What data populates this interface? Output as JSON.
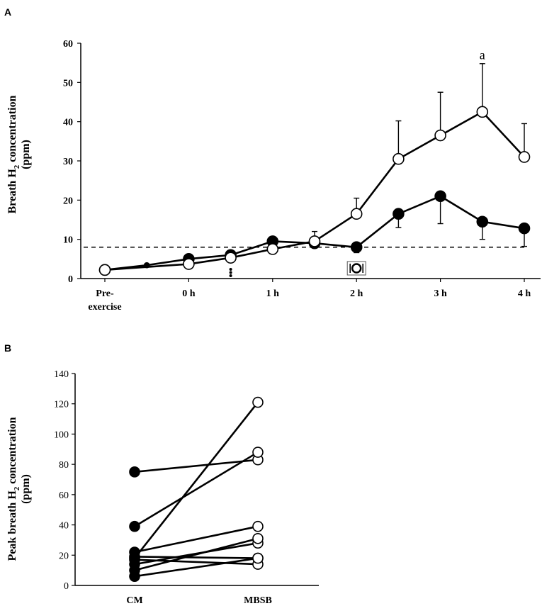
{
  "chart_data": [
    {
      "panel_label": "A",
      "type": "line",
      "ylabel_main": "Breath H",
      "ylabel_sub": "2",
      "ylabel_rest": " concentration",
      "ylabel_unit": "(ppm)",
      "ylim": [
        0,
        60
      ],
      "yticks": [
        "0",
        "10",
        "20",
        "30",
        "40",
        "50",
        "60"
      ],
      "xtick_labels": [
        {
          "label_l1": "Pre-",
          "label_l2": "exercise",
          "x": 0
        },
        {
          "label_l1": "0 h",
          "label_l2": "",
          "x": 1
        },
        {
          "label_l1": "1 h",
          "label_l2": "",
          "x": 2
        },
        {
          "label_l1": "2 h",
          "label_l2": "",
          "x": 3
        },
        {
          "label_l1": "3 h",
          "label_l2": "",
          "x": 4
        },
        {
          "label_l1": "4 h",
          "label_l2": "",
          "x": 5
        }
      ],
      "threshold": 8,
      "annotation_text": "a",
      "annotation_x": 4.5,
      "annotation_y": 57,
      "meal_marker_x": 3,
      "exercise_marker_x": 1.5,
      "series": [
        {
          "name": "CM",
          "marker": "filled",
          "x": [
            0,
            0.5,
            1,
            1.5,
            2,
            2.5,
            3,
            3.5,
            4,
            4.5,
            5
          ],
          "y": [
            2.2,
            3.4,
            5,
            6,
            9.5,
            9,
            8,
            16.5,
            21,
            14.5,
            12.8
          ],
          "err": [
            0,
            0,
            1,
            1,
            1.2,
            1,
            1.4,
            3.5,
            7,
            4.5,
            4.6
          ]
        },
        {
          "name": "MBSB",
          "marker": "open",
          "x": [
            0,
            1,
            1.5,
            2,
            2.5,
            3,
            3.5,
            4,
            4.5,
            5
          ],
          "y": [
            2.2,
            3.7,
            5.3,
            7.5,
            9.5,
            16.5,
            30.5,
            36.5,
            42.5,
            31
          ],
          "err": [
            0,
            0,
            0.5,
            2,
            2.5,
            4,
            9.7,
            11,
            12.3,
            8.5
          ]
        }
      ]
    },
    {
      "panel_label": "B",
      "type": "scatter",
      "ylabel_main": "Peak breath H",
      "ylabel_sub": "2",
      "ylabel_rest": " concentration",
      "ylabel_unit": "(ppm)",
      "ylim": [
        0,
        140
      ],
      "yticks": [
        "0",
        "20",
        "40",
        "60",
        "80",
        "100",
        "120",
        "140"
      ],
      "categories": [
        "CM",
        "MBSB"
      ],
      "pairs": [
        {
          "cm": 75,
          "mbsb": 83
        },
        {
          "cm": 39,
          "mbsb": 88
        },
        {
          "cm": 22,
          "mbsb": 39
        },
        {
          "cm": 19,
          "mbsb": 18
        },
        {
          "cm": 17,
          "mbsb": 14
        },
        {
          "cm": 14,
          "mbsb": 28
        },
        {
          "cm": 10,
          "mbsb": 31
        },
        {
          "cm": 6,
          "mbsb": 18
        },
        {
          "cm": 18,
          "mbsb": 121
        }
      ]
    }
  ]
}
